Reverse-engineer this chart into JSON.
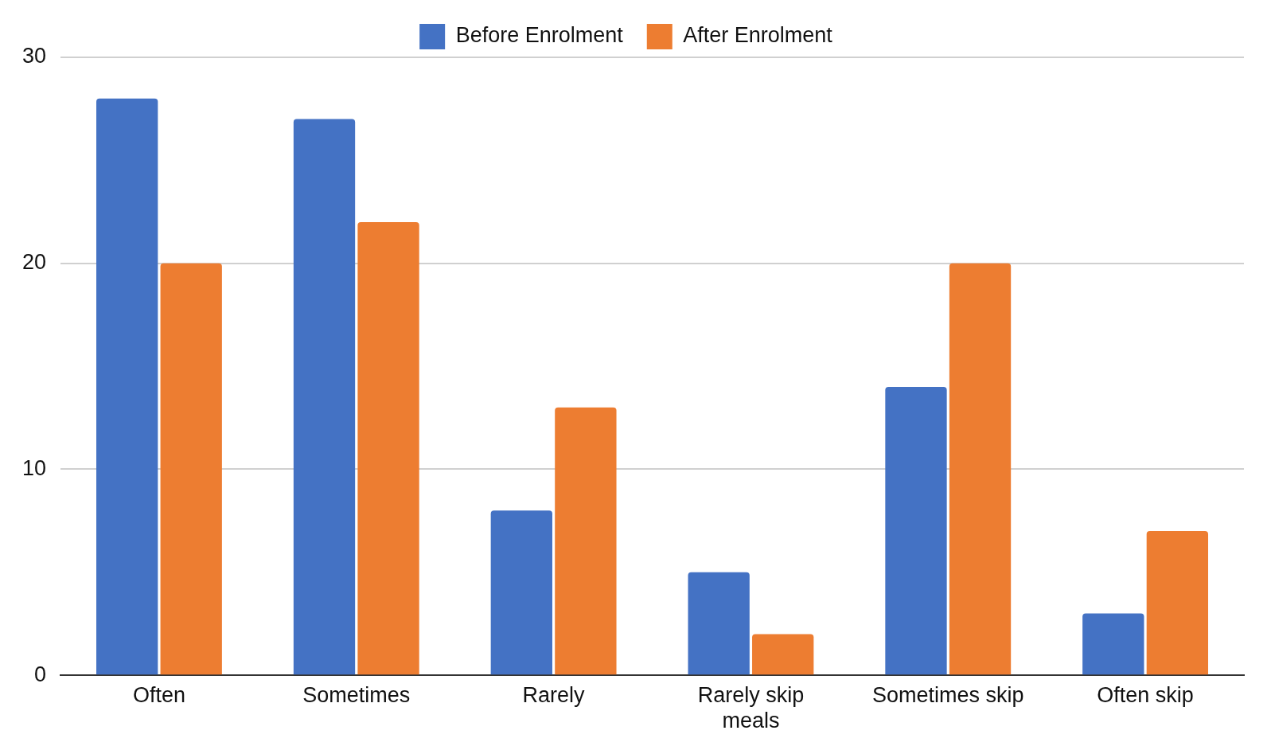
{
  "chart_data": {
    "type": "bar",
    "categories": [
      "Often",
      "Sometimes",
      "Rarely",
      "Rarely skip meals",
      "Sometimes skip",
      "Often skip"
    ],
    "series": [
      {
        "name": "Before Enrolment",
        "color": "#4472c4",
        "values": [
          28,
          27,
          8,
          5,
          14,
          3
        ]
      },
      {
        "name": "After Enrolment",
        "color": "#ed7d31",
        "values": [
          20,
          22,
          13,
          2,
          20,
          7
        ]
      }
    ],
    "ylim": [
      0,
      30
    ],
    "yticks": [
      0,
      10,
      20,
      30
    ],
    "grid": "y",
    "legend": "top"
  }
}
